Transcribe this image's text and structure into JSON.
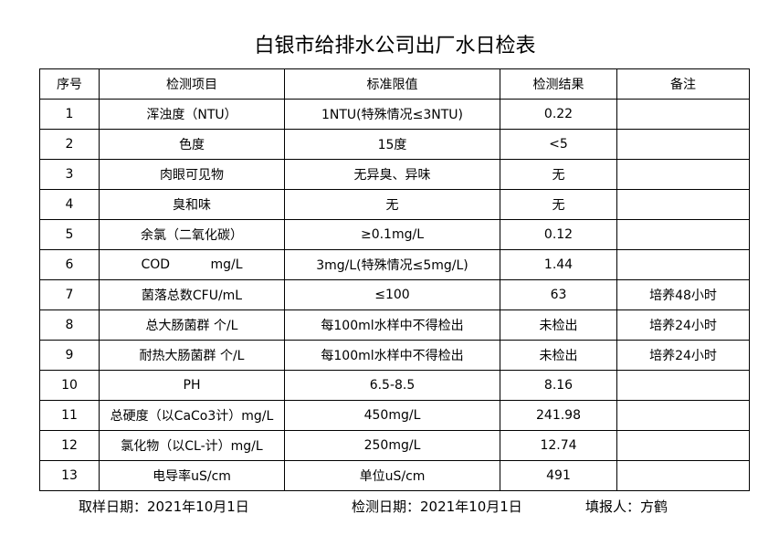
{
  "header": {
    "title": "白银市给排水公司出厂水日检表"
  },
  "table": {
    "columns": [
      "序号",
      "检测项目",
      "标准限值",
      "检测结果",
      "备注"
    ],
    "rows": [
      {
        "no": "1",
        "item": "浑浊度（NTU）",
        "limit": "1NTU(特殊情况≤3NTU)",
        "result": "0.22"
      },
      {
        "no": "2",
        "item": "色度",
        "limit": "15度",
        "result": "<5"
      },
      {
        "no": "3",
        "item": "肉眼可见物",
        "limit": "无异臭、异味",
        "result": "无"
      },
      {
        "no": "4",
        "item": "臭和味",
        "limit": "无",
        "result": "无"
      },
      {
        "no": "5",
        "item": "余氯（二氧化碳）",
        "limit": "≥0.1mg/L",
        "result": "0.12"
      },
      {
        "no": "6",
        "item": "COD          mg/L",
        "limit": "3mg/L(特殊情况≤5mg/L)",
        "result": "1.44"
      },
      {
        "no": "7",
        "item": "菌落总数CFU/mL",
        "limit": "≤100",
        "result": "63",
        "remark": "培养48小时"
      },
      {
        "no": "8",
        "item": "总大肠菌群 个/L",
        "limit": "每100ml水样中不得检出",
        "result": "未检出",
        "remark": "培养24小时"
      },
      {
        "no": "9",
        "item": "耐热大肠菌群 个/L",
        "limit": "每100ml水样中不得检出",
        "result": "未检出",
        "remark": "培养24小时"
      },
      {
        "no": "10",
        "item": "PH",
        "limit": "6.5-8.5",
        "result": "8.16"
      },
      {
        "no": "11",
        "item": "总硬度（以CaCo3计）mg/L",
        "limit": "450mg/L",
        "result": "241.98"
      },
      {
        "no": "12",
        "item": "氯化物（以CL-计）mg/L",
        "limit": "250mg/L",
        "result": "12.74"
      },
      {
        "no": "13",
        "item": "电导率uS/cm",
        "limit": "单位uS/cm",
        "result": "491"
      }
    ]
  },
  "footer": {
    "sample_date": "取样日期：2021年10月1日",
    "test_date": "检测日期：2021年10月1日",
    "reporter": "填报人：方鹤"
  }
}
